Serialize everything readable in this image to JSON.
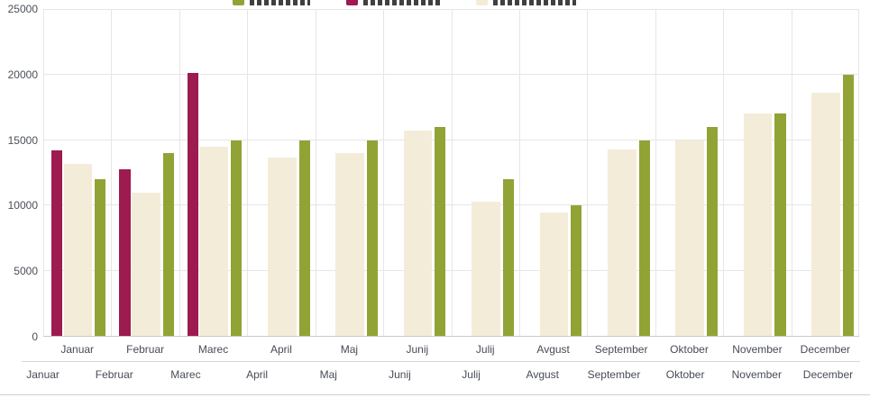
{
  "legend": {
    "note": "legend labels are clipped by the top edge of the screenshot and unreadable",
    "items": [
      {
        "name": "green-series",
        "color": "#92a335",
        "label": "",
        "label_clipped": true,
        "label_width": 67
      },
      {
        "name": "crimson-series",
        "color": "#9d1b4f",
        "label": "",
        "label_clipped": true,
        "label_width": 85
      },
      {
        "name": "beige-series",
        "color": "#f3ecd9",
        "label": "",
        "label_clipped": true,
        "label_width": 92
      }
    ]
  },
  "chart_data": {
    "type": "bar",
    "title": "",
    "categories": [
      "Januar",
      "Februar",
      "Marec",
      "April",
      "Maj",
      "Junij",
      "Julij",
      "Avgust",
      "September",
      "Oktober",
      "November",
      "December"
    ],
    "series": [
      {
        "name": "crimson",
        "color": "#9d1b4f",
        "values": [
          14200,
          12800,
          20100,
          null,
          null,
          null,
          null,
          null,
          null,
          null,
          null,
          null
        ]
      },
      {
        "name": "beige",
        "color": "#f3ecd9",
        "values": [
          13200,
          11000,
          14500,
          13700,
          14000,
          15700,
          10300,
          9500,
          14300,
          15000,
          17000,
          18600
        ]
      },
      {
        "name": "green",
        "color": "#92a335",
        "values": [
          12000,
          14000,
          15000,
          15000,
          15000,
          16000,
          12000,
          10000,
          15000,
          16000,
          17000,
          20000
        ]
      }
    ],
    "ylim": [
      0,
      25000
    ],
    "yticks": [
      0,
      5000,
      10000,
      15000,
      20000,
      25000
    ],
    "grid": true,
    "legend_position": "top"
  },
  "axis": {
    "y_tick_labels": [
      "0",
      "5000",
      "10000",
      "15000",
      "20000",
      "25000"
    ],
    "x_tick_labels": [
      "Januar",
      "Februar",
      "Marec",
      "April",
      "Maj",
      "Junij",
      "Julij",
      "Avgust",
      "September",
      "Oktober",
      "November",
      "December"
    ],
    "navigator_labels": [
      "Januar",
      "Februar",
      "Marec",
      "April",
      "Maj",
      "Junij",
      "Julij",
      "Avgust",
      "September",
      "Oktober",
      "November",
      "December"
    ]
  }
}
